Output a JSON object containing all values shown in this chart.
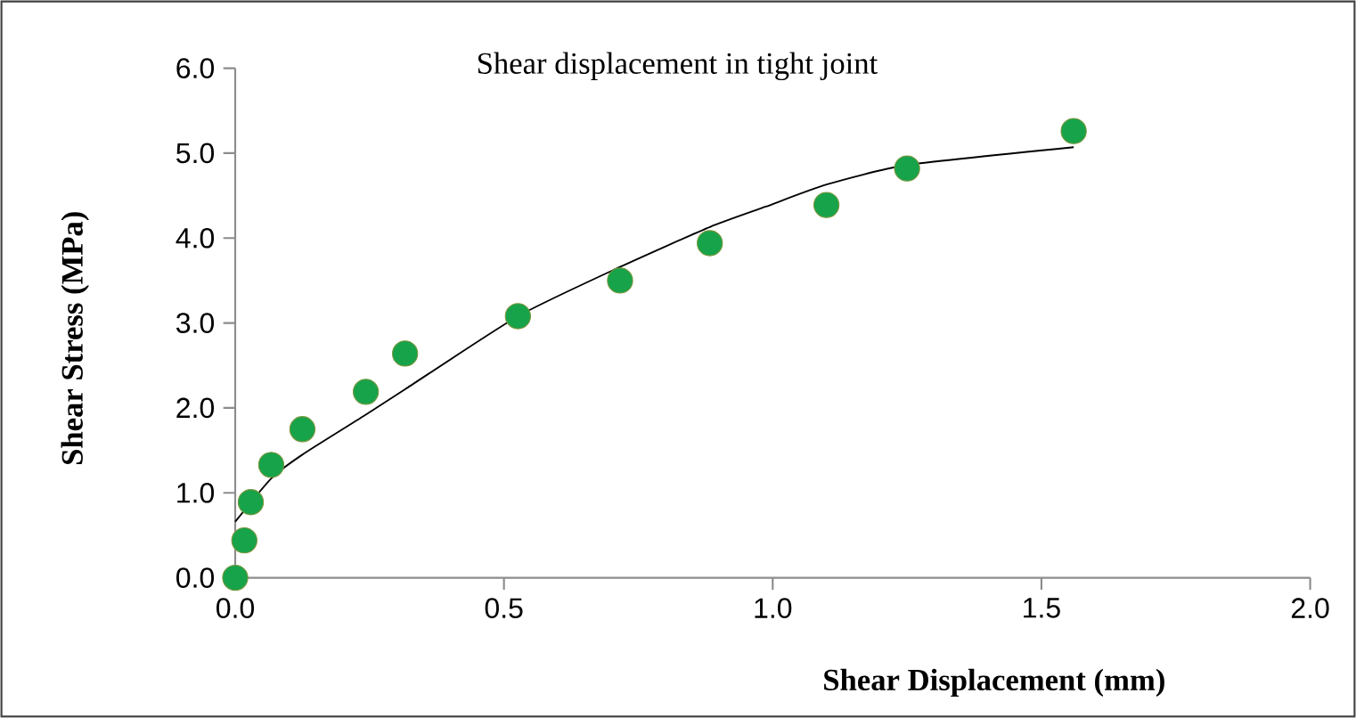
{
  "chart_data": {
    "type": "scatter",
    "title": "Shear displacement in tight joint",
    "xlabel": "Shear Displacement (mm)",
    "ylabel": "Shear Stress (MPa)",
    "series": [
      {
        "color": "#17a34a",
        "marker": "circle",
        "x": [
          0,
          0.017,
          0.029,
          0.067,
          0.125,
          0.243,
          0.316,
          0.526,
          0.716,
          0.883,
          1.1,
          1.25,
          1.56
        ],
        "values": [
          0,
          0.44,
          0.89,
          1.33,
          1.75,
          2.19,
          2.64,
          3.08,
          3.5,
          3.94,
          4.39,
          4.82,
          5.26
        ]
      },
      {
        "type": "line",
        "color": "#000000",
        "marker": "none",
        "x": [
          0,
          0.067,
          0.125,
          0.243,
          0.316,
          0.526,
          0.716,
          0.883,
          0.987,
          1.1,
          1.25,
          1.56
        ],
        "values": [
          0.66,
          1.17,
          1.45,
          1.92,
          2.22,
          3.08,
          3.66,
          4.13,
          4.37,
          4.63,
          4.86,
          5.07
        ]
      }
    ],
    "xlim": [
      0,
      2.0
    ],
    "ylim": [
      0,
      6.0
    ],
    "xticks": [
      {
        "value": 0,
        "label": "0.0"
      },
      0.5,
      {
        "value": 1,
        "label": "1.0"
      },
      1.5,
      {
        "value": 2,
        "label": "2.0"
      }
    ],
    "yticks": [
      {
        "value": 0,
        "label": "0.0"
      },
      {
        "value": 1,
        "label": "1.0"
      },
      {
        "value": 2,
        "label": "2.0"
      },
      {
        "value": 3,
        "label": "3.0"
      },
      {
        "value": 4,
        "label": "4.0"
      },
      {
        "value": 5,
        "label": "5.0"
      },
      {
        "value": 6,
        "label": "6.0"
      }
    ]
  }
}
